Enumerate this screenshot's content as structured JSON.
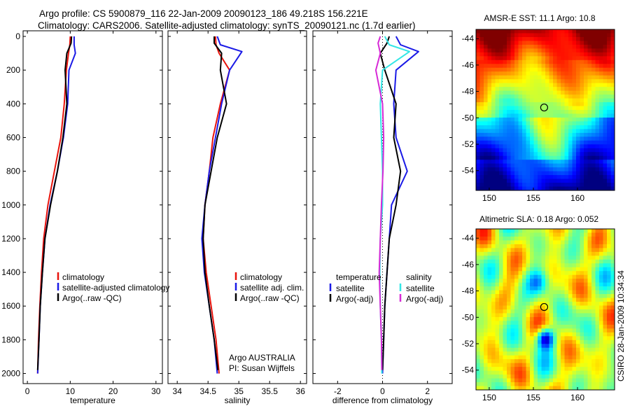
{
  "header": {
    "title_line1": "Argo profile: CS 5900879_116 22-Jan-2009 20090123_186 49.218S 156.221E",
    "title_line2": "Climatology: CARS2006. Satellite-adjusted climatology: synTS_20090121.nc (1.7d earlier)"
  },
  "side_label": "CSIRO 28-Jan-2009 10:34:34",
  "colors": {
    "red": "#e8140c",
    "blue": "#1a1ae6",
    "black": "#000000",
    "cyan": "#33e6e6",
    "magenta": "#d629d6"
  },
  "chart_data": [
    {
      "type": "line",
      "xlabel": "temperature",
      "ylabel": "",
      "xlim": [
        -1,
        31.5
      ],
      "ylim": [
        2060,
        0
      ],
      "xticks": [
        0,
        10,
        20,
        30
      ],
      "yticks": [
        0,
        200,
        400,
        600,
        800,
        1000,
        1200,
        1400,
        1600,
        1800,
        2000
      ],
      "legend": {
        "placement": "bottom-right",
        "entries": [
          "climatology",
          "satellite-adjusted climatology",
          "Argo(..raw -QC)"
        ]
      },
      "series": [
        {
          "name": "climatology",
          "color": "red",
          "x": [
            10.0,
            9.9,
            9.6,
            9.1,
            8.6,
            7.8,
            6.3,
            4.8,
            3.8,
            3.3,
            2.9,
            2.6,
            2.4
          ],
          "y": [
            0,
            50,
            100,
            200,
            400,
            600,
            800,
            1000,
            1200,
            1400,
            1600,
            1800,
            2000
          ]
        },
        {
          "name": "satellite-adjusted climatology",
          "color": "blue",
          "x": [
            10.9,
            10.9,
            11.2,
            9.7,
            9.4,
            8.4,
            7.0,
            5.3,
            4.1,
            3.5,
            3.0,
            2.7,
            2.4
          ],
          "y": [
            0,
            50,
            100,
            200,
            400,
            600,
            800,
            1000,
            1200,
            1400,
            1600,
            1800,
            2000
          ]
        },
        {
          "name": "Argo(..raw -QC)",
          "color": "black",
          "x": [
            10.3,
            10.2,
            9.2,
            8.8,
            9.2,
            8.3,
            7.0,
            5.4,
            4.1,
            3.5,
            3.0,
            2.7,
            2.4
          ],
          "y": [
            0,
            40,
            100,
            200,
            400,
            600,
            800,
            1000,
            1200,
            1400,
            1600,
            1800,
            1980
          ]
        }
      ]
    },
    {
      "type": "line",
      "xlabel": "salinity",
      "xlim": [
        33.85,
        36.1
      ],
      "ylim": [
        2060,
        0
      ],
      "xticks": [
        34,
        34.5,
        35,
        35.5,
        36
      ],
      "yticks": [
        0,
        200,
        400,
        600,
        800,
        1000,
        1200,
        1400,
        1600,
        1800,
        2000
      ],
      "legend": {
        "placement": "bottom-right",
        "entries": [
          "climatology",
          "satellite adj. clim.",
          "Argo(..raw -QC)"
        ]
      },
      "annotation": {
        "line1": "Argo AUSTRALIA",
        "line2": "PI: Susan Wijffels"
      },
      "series": [
        {
          "name": "climatology",
          "color": "red",
          "x": [
            34.62,
            34.63,
            34.68,
            34.85,
            34.7,
            34.58,
            34.52,
            34.45,
            34.42,
            34.47,
            34.55,
            34.63,
            34.68
          ],
          "y": [
            0,
            50,
            100,
            200,
            400,
            600,
            800,
            1000,
            1200,
            1400,
            1600,
            1800,
            2000
          ]
        },
        {
          "name": "satellite adj. clim.",
          "color": "blue",
          "x": [
            34.65,
            34.7,
            35.05,
            34.85,
            34.72,
            34.62,
            34.52,
            34.45,
            34.4,
            34.44,
            34.52,
            34.6,
            34.65
          ],
          "y": [
            0,
            50,
            90,
            200,
            400,
            600,
            800,
            1000,
            1200,
            1400,
            1600,
            1800,
            2000
          ]
        },
        {
          "name": "Argo(..raw -QC)",
          "color": "black",
          "x": [
            34.6,
            34.6,
            34.72,
            34.7,
            34.8,
            34.65,
            34.55,
            34.45,
            34.42,
            34.45,
            34.52,
            34.6,
            34.66
          ],
          "y": [
            0,
            40,
            100,
            200,
            400,
            600,
            800,
            1000,
            1200,
            1400,
            1600,
            1800,
            1980
          ]
        }
      ]
    },
    {
      "type": "line",
      "xlabel": "difference from climatology",
      "xlim": [
        -3.1,
        3.1
      ],
      "ylim": [
        2060,
        0
      ],
      "xticks": [
        -2,
        0,
        2
      ],
      "yticks": [
        0,
        200,
        400,
        600,
        800,
        1000,
        1200,
        1400,
        1600,
        1800,
        2000
      ],
      "zero_line": 0,
      "legend": {
        "placement": "bottom",
        "groups": [
          {
            "header": "temperature",
            "entries": [
              "satellite",
              "Argo(-adj)"
            ]
          },
          {
            "header": "salinity",
            "entries": [
              "satellite",
              "Argo(-adj)"
            ]
          }
        ]
      },
      "series": [
        {
          "name": "temperature satellite",
          "color": "blue",
          "x": [
            0.6,
            0.8,
            1.6,
            0.6,
            0.5,
            0.6,
            1.1,
            0.4,
            0.3,
            0.2,
            0.1,
            0.05,
            0.0
          ],
          "y": [
            0,
            50,
            90,
            200,
            400,
            600,
            800,
            1000,
            1200,
            1400,
            1600,
            1800,
            2000
          ]
        },
        {
          "name": "temperature Argo(-adj)",
          "color": "black",
          "x": [
            0.3,
            0.2,
            -0.1,
            0.1,
            0.6,
            0.5,
            0.8,
            0.6,
            0.3,
            0.2,
            0.1,
            0.05,
            0.0
          ],
          "y": [
            0,
            40,
            100,
            200,
            400,
            600,
            800,
            1000,
            1200,
            1400,
            1600,
            1800,
            1980
          ]
        },
        {
          "name": "salinity satellite",
          "color": "cyan",
          "x": [
            0.1,
            0.3,
            1.2,
            0.0,
            -0.1,
            -0.05,
            0.0,
            0.0,
            -0.1,
            -0.12,
            -0.1,
            -0.05,
            -0.03
          ],
          "y": [
            0,
            50,
            90,
            200,
            400,
            600,
            800,
            1000,
            1200,
            1400,
            1600,
            1800,
            2000
          ]
        },
        {
          "name": "salinity Argo(-adj)",
          "color": "magenta",
          "x": [
            -0.1,
            -0.2,
            -0.1,
            -0.3,
            0.0,
            0.05,
            0.02,
            -0.05,
            -0.1,
            -0.15,
            -0.1,
            -0.05,
            -0.03
          ],
          "y": [
            0,
            40,
            100,
            200,
            400,
            600,
            800,
            1000,
            1200,
            1400,
            1600,
            1800,
            1980
          ]
        }
      ]
    },
    {
      "type": "heatmap",
      "title": "AMSR-E SST: 11.1 Argo: 10.8",
      "xlim": [
        148.5,
        164.2
      ],
      "ylim": [
        -55.5,
        -43.3
      ],
      "xticks": [
        150,
        155,
        160
      ],
      "yticks": [
        -44,
        -46,
        -48,
        -50,
        -52,
        -54
      ],
      "marker": {
        "lon": 156.221,
        "lat": -49.218
      },
      "colormap": "jet"
    },
    {
      "type": "heatmap",
      "title": "Altimetric SLA: 0.18 Argo: 0.052",
      "xlim": [
        148.5,
        164.2
      ],
      "ylim": [
        -55.5,
        -43.3
      ],
      "xticks": [
        150,
        155,
        160
      ],
      "yticks": [
        -44,
        -46,
        -48,
        -50,
        -52,
        -54
      ],
      "marker": {
        "lon": 156.221,
        "lat": -49.218
      },
      "colormap": "jet"
    }
  ]
}
